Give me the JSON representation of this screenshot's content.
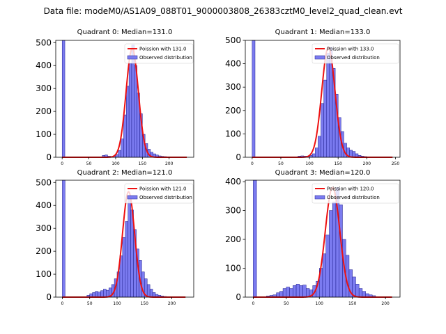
{
  "suptitle": "Data file: modeM0/AS1A09_088T01_9000003808_26383cztM0_level2_quad_clean.evt",
  "colors": {
    "bar_fill": "#7b7bf0",
    "bar_edge": "#1c1c8c",
    "line": "#ee1111"
  },
  "chart_data": [
    {
      "type": "bar",
      "title": "Quadrant 0: Median=131.0",
      "legend": [
        "Poission with 131.0",
        "Observed distribution"
      ],
      "legend_position": "upper-right",
      "xlim": [
        -12,
        246
      ],
      "ylim": [
        0,
        510
      ],
      "xticks": [
        0,
        50,
        100,
        150,
        200
      ],
      "yticks": [
        0,
        100,
        200,
        300,
        400,
        500
      ],
      "bin_width": 5,
      "bins": [
        [
          0,
          510
        ],
        [
          75,
          8
        ],
        [
          80,
          10
        ],
        [
          85,
          5
        ],
        [
          90,
          4
        ],
        [
          95,
          6
        ],
        [
          100,
          12
        ],
        [
          105,
          30
        ],
        [
          110,
          80
        ],
        [
          115,
          185
        ],
        [
          120,
          310
        ],
        [
          125,
          410
        ],
        [
          130,
          490
        ],
        [
          135,
          400
        ],
        [
          140,
          280
        ],
        [
          145,
          190
        ],
        [
          150,
          100
        ],
        [
          155,
          60
        ],
        [
          160,
          35
        ],
        [
          165,
          22
        ],
        [
          170,
          15
        ],
        [
          175,
          10
        ],
        [
          180,
          6
        ],
        [
          185,
          4
        ],
        [
          190,
          3
        ],
        [
          195,
          2
        ],
        [
          200,
          2
        ],
        [
          205,
          1
        ]
      ],
      "poisson_mean": 131.0,
      "poisson_peak": 475,
      "poisson_xrange": [
        0,
        233
      ]
    },
    {
      "type": "bar",
      "title": "Quadrant 1: Median=133.0",
      "legend": [
        "Poission with 133.0",
        "Observed distribution"
      ],
      "legend_position": "upper-right",
      "xlim": [
        -12,
        258
      ],
      "ylim": [
        0,
        500
      ],
      "xticks": [
        0,
        50,
        100,
        150,
        200,
        250
      ],
      "yticks": [
        0,
        100,
        200,
        300,
        400,
        500
      ],
      "bin_width": 5,
      "bins": [
        [
          0,
          500
        ],
        [
          80,
          5
        ],
        [
          85,
          6
        ],
        [
          90,
          5
        ],
        [
          95,
          4
        ],
        [
          100,
          8
        ],
        [
          105,
          15
        ],
        [
          110,
          40
        ],
        [
          115,
          90
        ],
        [
          120,
          230
        ],
        [
          125,
          330
        ],
        [
          130,
          445
        ],
        [
          135,
          470
        ],
        [
          140,
          380
        ],
        [
          145,
          270
        ],
        [
          150,
          170
        ],
        [
          155,
          110
        ],
        [
          160,
          60
        ],
        [
          165,
          40
        ],
        [
          170,
          30
        ],
        [
          175,
          25
        ],
        [
          180,
          15
        ],
        [
          185,
          8
        ],
        [
          190,
          5
        ],
        [
          195,
          3
        ],
        [
          200,
          2
        ],
        [
          205,
          1
        ]
      ],
      "poisson_mean": 133.0,
      "poisson_peak": 470,
      "poisson_xrange": [
        0,
        245
      ]
    },
    {
      "type": "bar",
      "title": "Quadrant 2: Median=121.0",
      "legend": [
        "Poission with 121.0",
        "Observed distribution"
      ],
      "legend_position": "upper-right",
      "xlim": [
        -12,
        240
      ],
      "ylim": [
        0,
        510
      ],
      "xticks": [
        0,
        50,
        100,
        150,
        200
      ],
      "yticks": [
        0,
        100,
        200,
        300,
        400,
        500
      ],
      "bin_width": 5,
      "bins": [
        [
          0,
          510
        ],
        [
          45,
          8
        ],
        [
          50,
          15
        ],
        [
          55,
          20
        ],
        [
          60,
          25
        ],
        [
          65,
          22
        ],
        [
          70,
          28
        ],
        [
          75,
          35
        ],
        [
          80,
          30
        ],
        [
          85,
          40
        ],
        [
          90,
          55
        ],
        [
          95,
          80
        ],
        [
          100,
          110
        ],
        [
          105,
          180
        ],
        [
          110,
          260
        ],
        [
          115,
          330
        ],
        [
          120,
          430
        ],
        [
          125,
          380
        ],
        [
          130,
          295
        ],
        [
          135,
          210
        ],
        [
          140,
          160
        ],
        [
          145,
          110
        ],
        [
          150,
          80
        ],
        [
          155,
          55
        ],
        [
          160,
          35
        ],
        [
          165,
          20
        ],
        [
          170,
          12
        ],
        [
          175,
          8
        ],
        [
          180,
          5
        ],
        [
          185,
          3
        ],
        [
          190,
          2
        ],
        [
          195,
          1
        ]
      ],
      "poisson_mean": 121.0,
      "poisson_peak": 460,
      "poisson_xrange": [
        0,
        225
      ]
    },
    {
      "type": "bar",
      "title": "Quadrant 3: Median=120.0",
      "legend": [
        "Poission with 120.0",
        "Observed distribution"
      ],
      "legend_position": "upper-right",
      "xlim": [
        -12,
        222
      ],
      "ylim": [
        0,
        405
      ],
      "xticks": [
        0,
        50,
        100,
        150,
        200
      ],
      "yticks": [
        0,
        100,
        200,
        300,
        400
      ],
      "bin_width": 5,
      "bins": [
        [
          0,
          405
        ],
        [
          20,
          4
        ],
        [
          25,
          6
        ],
        [
          30,
          8
        ],
        [
          35,
          15
        ],
        [
          40,
          20
        ],
        [
          45,
          30
        ],
        [
          50,
          35
        ],
        [
          55,
          30
        ],
        [
          60,
          40
        ],
        [
          65,
          45
        ],
        [
          70,
          40
        ],
        [
          75,
          42
        ],
        [
          80,
          30
        ],
        [
          85,
          25
        ],
        [
          90,
          40
        ],
        [
          95,
          55
        ],
        [
          100,
          100
        ],
        [
          105,
          150
        ],
        [
          110,
          215
        ],
        [
          115,
          300
        ],
        [
          120,
          330
        ],
        [
          125,
          380
        ],
        [
          130,
          320
        ],
        [
          135,
          200
        ],
        [
          140,
          145
        ],
        [
          145,
          95
        ],
        [
          150,
          70
        ],
        [
          155,
          45
        ],
        [
          160,
          30
        ],
        [
          165,
          20
        ],
        [
          170,
          12
        ],
        [
          175,
          8
        ],
        [
          180,
          5
        ]
      ],
      "poisson_mean": 120.0,
      "poisson_peak": 380,
      "poisson_xrange": [
        0,
        210
      ]
    }
  ]
}
